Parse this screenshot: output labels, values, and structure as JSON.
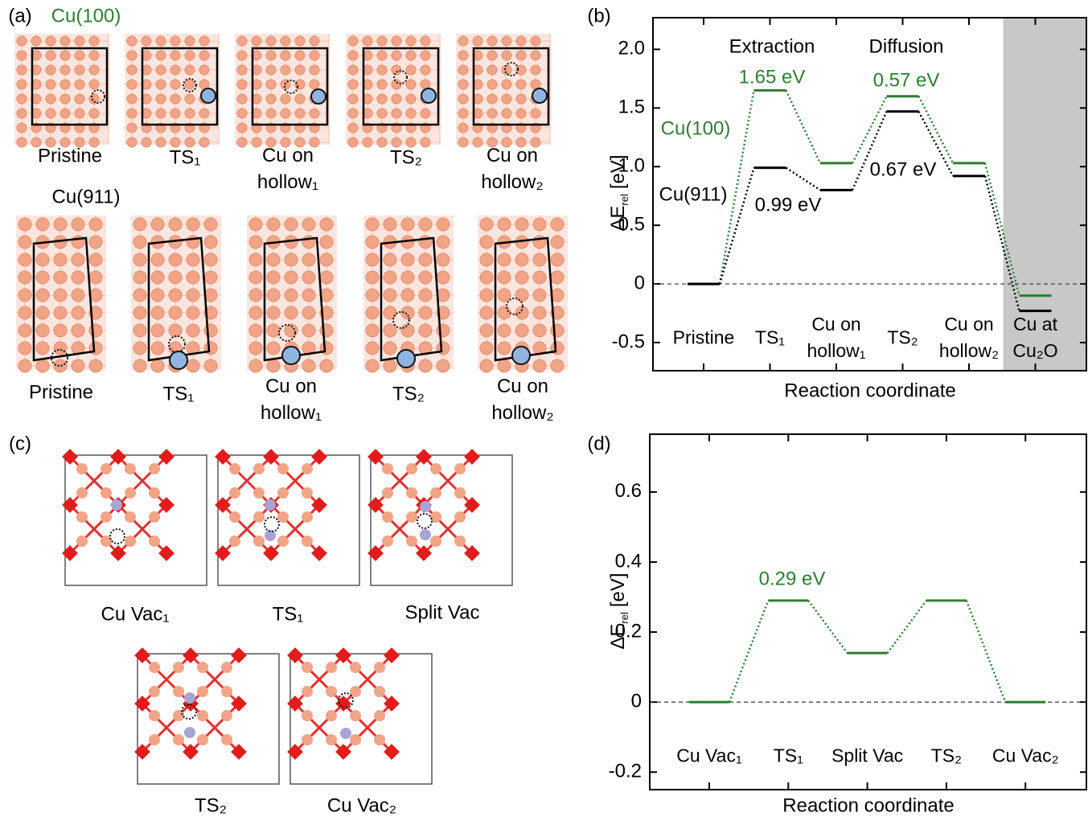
{
  "figure": {
    "panel_a": {
      "label": "(a)",
      "cu100": "Cu(100)",
      "cu911": "Cu(911)",
      "row1": [
        "Pristine",
        "TS₁",
        "Cu on hollow₁",
        "TS₂",
        "Cu on hollow₂"
      ],
      "row2": [
        "Pristine",
        "TS₁",
        "Cu on hollow₁",
        "TS₂",
        "Cu on hollow₂"
      ]
    },
    "panel_c": {
      "label": "(c)",
      "captions": [
        "Cu Vac₁",
        "TS₁",
        "Split Vac",
        "TS₂",
        "Cu Vac₂"
      ]
    }
  },
  "chart_data": [
    {
      "type": "line",
      "panel_label": "(b)",
      "xlabel": "Reaction coordinate",
      "ylabel": {
        "symbol": "ΔE",
        "subscript": "rel",
        "unit": "[eV]"
      },
      "categories": [
        "Pristine",
        "TS₁",
        "Cu on hollow₁",
        "TS₂",
        "Cu on hollow₂",
        "Cu at Cu₂O"
      ],
      "series": [
        {
          "name": "Cu(100)",
          "color": "#2e7d32",
          "values": [
            0,
            1.65,
            1.03,
            1.6,
            1.03,
            -0.1
          ]
        },
        {
          "name": "Cu(911)",
          "color": "#000000",
          "values": [
            0,
            0.99,
            0.8,
            1.47,
            0.92,
            -0.23
          ]
        }
      ],
      "ylim": [
        -0.74,
        2.27
      ],
      "yticks": [
        -0.5,
        0,
        0.5,
        {
          "value": 1,
          "label": "1.0"
        },
        1.5,
        {
          "value": 2,
          "label": "2.0"
        }
      ],
      "annotations": [
        {
          "text": "Extraction",
          "color": "#000000"
        },
        {
          "text": "Diffusion",
          "color": "#000000"
        },
        {
          "text": "1.65 eV",
          "color": "#2e7d32"
        },
        {
          "text": "0.57 eV",
          "color": "#2e7d32"
        },
        {
          "text": "0.99 eV",
          "color": "#000000"
        },
        {
          "text": "0.67 eV",
          "color": "#000000"
        }
      ],
      "shade_color": "#c8c8c8",
      "zero_line": true
    },
    {
      "type": "line",
      "panel_label": "(d)",
      "xlabel": "Reaction coordinate",
      "ylabel": {
        "symbol": "ΔE",
        "subscript": "rel",
        "unit": "[eV]"
      },
      "categories": [
        "Cu Vac₁",
        "TS₁",
        "Split Vac",
        "TS₂",
        "Cu Vac₂"
      ],
      "series": [
        {
          "name": null,
          "color": "#2e7d32",
          "values": [
            0,
            0.29,
            0.14,
            0.29,
            0
          ]
        }
      ],
      "ylim": [
        -0.25,
        0.765
      ],
      "yticks": [
        -0.2,
        0,
        0.2,
        0.4,
        0.6
      ],
      "annotations": [
        {
          "text": "0.29 eV",
          "color": "#2e7d32"
        }
      ],
      "zero_line": true
    }
  ]
}
